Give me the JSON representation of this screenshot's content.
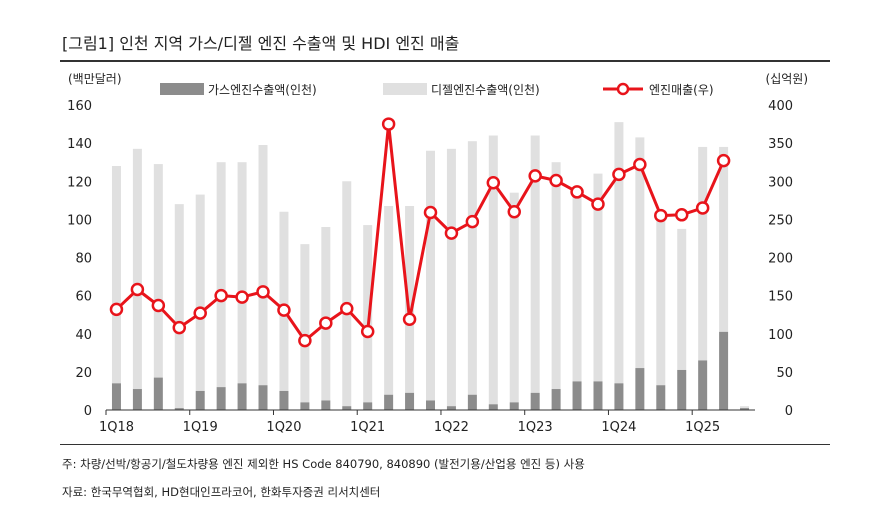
{
  "figure": {
    "title": "[그림1]  인천 지역 가스/디젤 엔진 수출액 및 HDI 엔진 매출",
    "note": "주: 차량/선박/항공기/철도차량용 엔진 제외한 HS Code 840790, 840890 (발전기용/산업용 엔진 등) 사용",
    "source": "자료: 한국무역협회, HD현대인프라코어, 한화투자증권 리서치센터"
  },
  "colors": {
    "gas": "#8c8c8c",
    "diesel": "#e0e0e0",
    "engine_line": "#e8141b",
    "axis": "#333333"
  },
  "chart_data": {
    "type": "bar",
    "left_axis_label": "(백만달러)",
    "right_axis_label": "(십억원)",
    "ylim_left": [
      0,
      160
    ],
    "yticks_left": [
      0,
      20,
      40,
      60,
      80,
      100,
      120,
      140,
      160
    ],
    "ylim_right": [
      0,
      400
    ],
    "yticks_right": [
      0,
      50,
      100,
      150,
      200,
      250,
      300,
      350,
      400
    ],
    "x_tick_labels": [
      "1Q18",
      "1Q19",
      "1Q20",
      "1Q21",
      "1Q22",
      "1Q23",
      "1Q24",
      "1Q25"
    ],
    "x_tick_indices": [
      0,
      4,
      8,
      12,
      16,
      20,
      24,
      28
    ],
    "legend_position": "top",
    "grid": false,
    "categories": [
      "1Q18",
      "2Q18",
      "3Q18",
      "4Q18",
      "1Q19",
      "2Q19",
      "3Q19",
      "4Q19",
      "1Q20",
      "2Q20",
      "3Q20",
      "4Q20",
      "1Q21",
      "2Q21",
      "3Q21",
      "4Q21",
      "1Q22",
      "2Q22",
      "3Q22",
      "4Q22",
      "1Q23",
      "2Q23",
      "3Q23",
      "4Q23",
      "1Q24",
      "2Q24",
      "3Q24",
      "4Q24",
      "1Q25",
      "2Q25",
      "3Q25"
    ],
    "series": [
      {
        "name": "가스엔진수출액(인천)",
        "kind": "stacked-bar",
        "axis": "left",
        "values": [
          14,
          11,
          17,
          1,
          10,
          12,
          14,
          13,
          10,
          4,
          5,
          2,
          4,
          8,
          9,
          5,
          2,
          8,
          3,
          4,
          9,
          11,
          15,
          15,
          14,
          22,
          13,
          21,
          26,
          41,
          1
        ]
      },
      {
        "name": "디젤엔진수출액(인천)",
        "kind": "stacked-bar",
        "axis": "left",
        "values": [
          114,
          126,
          112,
          107,
          103,
          118,
          116,
          126,
          94,
          83,
          91,
          118,
          93,
          99,
          98,
          131,
          135,
          133,
          141,
          110,
          135,
          119,
          98,
          109,
          137,
          121,
          88,
          74,
          112,
          97,
          1
        ]
      },
      {
        "name": "엔진매출(우)",
        "kind": "line",
        "axis": "right",
        "values": [
          132,
          158,
          137,
          108,
          127,
          150,
          148,
          155,
          131,
          91,
          114,
          133,
          103,
          375,
          119,
          259,
          232,
          247,
          298,
          260,
          307,
          301,
          286,
          270,
          309,
          322,
          255,
          256,
          265,
          327,
          null
        ]
      }
    ]
  }
}
